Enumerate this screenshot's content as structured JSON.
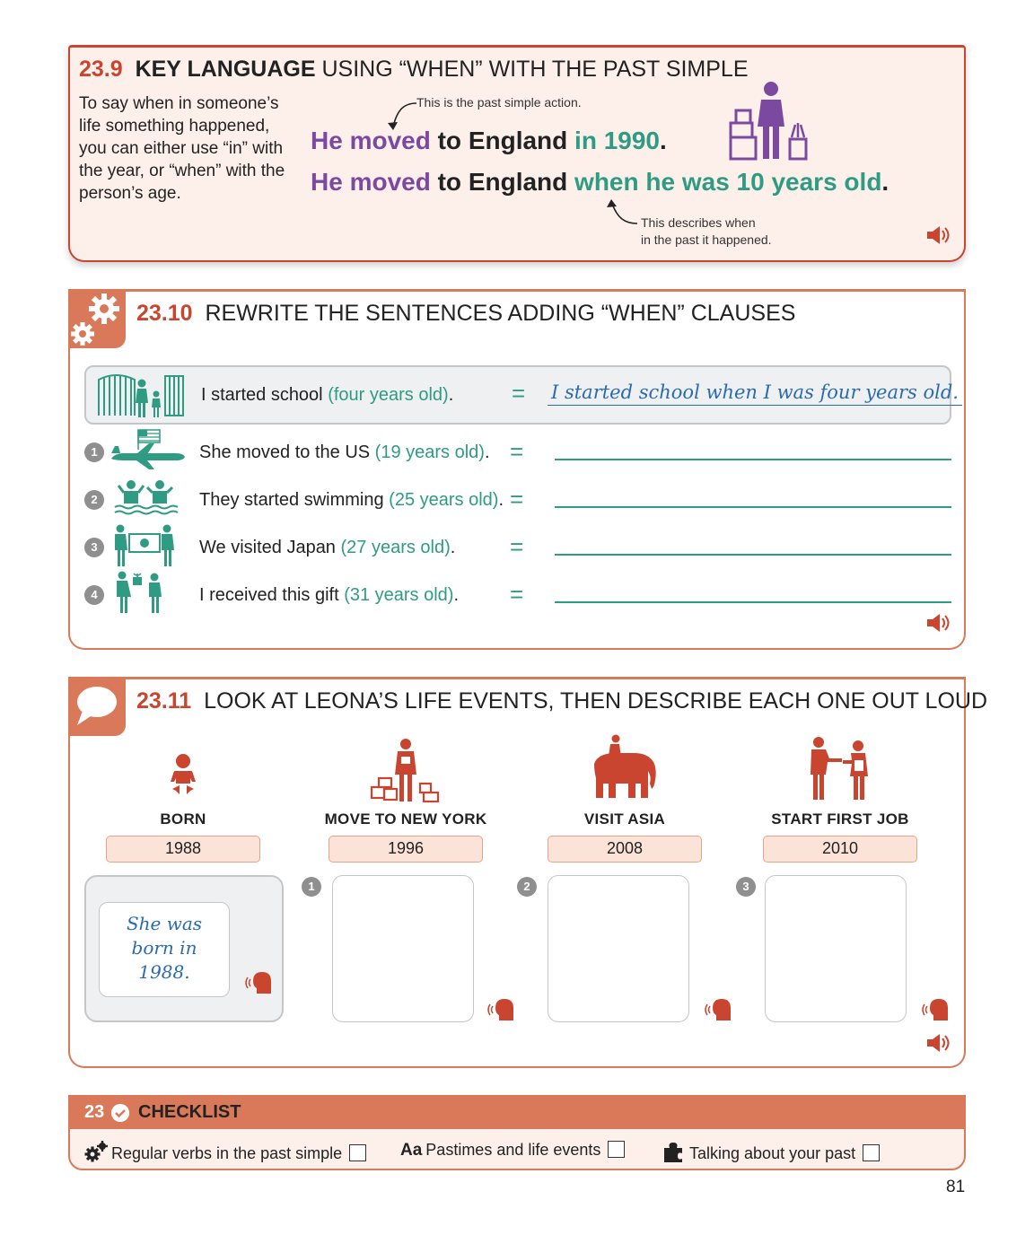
{
  "key_language": {
    "number": "23.9",
    "title_bold": "KEY LANGUAGE",
    "title_rest": " USING “WHEN” WITH THE PAST SIMPLE",
    "intro": "To say when in someone’s life something happened, you can either use “in” with the year, or “when” with the person’s age.",
    "note_top": "This is the past simple action.",
    "note_bottom_1": "This describes when",
    "note_bottom_2": "in the past it happened.",
    "line1": {
      "a": "He moved",
      "b": " to England ",
      "c": "in 1990",
      "d": "."
    },
    "line2": {
      "a": "He moved",
      "b": " to England ",
      "c": "when he was 10 years old",
      "d": "."
    }
  },
  "rewrite": {
    "number": "23.10",
    "title": "REWRITE THE SENTENCES ADDING “WHEN” CLAUSES",
    "equals": "=",
    "example": {
      "text": "I started school ",
      "hint": "(four years old)",
      "end": ".",
      "answer": "I started school when I was four years old."
    },
    "items": [
      {
        "num": "1",
        "text": "She moved to the US ",
        "hint": "(19 years old)",
        "end": "."
      },
      {
        "num": "2",
        "text": "They started swimming ",
        "hint": "(25 years old)",
        "end": "."
      },
      {
        "num": "3",
        "text": "We visited Japan ",
        "hint": "(27 years old)",
        "end": "."
      },
      {
        "num": "4",
        "text": "I received this gift ",
        "hint": "(31 years old)",
        "end": "."
      }
    ]
  },
  "life_events": {
    "number": "23.11",
    "title": "LOOK AT LEONA’S LIFE EVENTS, THEN DESCRIBE EACH ONE OUT LOUD",
    "events": [
      {
        "label": "BORN",
        "year": "1988"
      },
      {
        "label": "MOVE TO NEW YORK",
        "year": "1996"
      },
      {
        "label": "VISIT ASIA",
        "year": "2008"
      },
      {
        "label": "START FIRST JOB",
        "year": "2010"
      }
    ],
    "example_line1": "She was",
    "example_line2": "born in",
    "example_line3": "1988.",
    "bubble_nums": [
      "1",
      "2",
      "3"
    ]
  },
  "checklist": {
    "number": "23",
    "title": "CHECKLIST",
    "items": [
      {
        "label": "Regular verbs in the past simple",
        "icon": "gear-icon"
      },
      {
        "label": "Pastimes and life events",
        "icon": "vocab-icon",
        "prefix": "Aa"
      },
      {
        "label": "Talking about your past",
        "icon": "puzzle-icon"
      }
    ]
  },
  "colors": {
    "red": "#c9452f",
    "orange": "#d9795a",
    "teal": "#2e9b82",
    "purple": "#7b4aa0",
    "handwriting": "#2a6bb0"
  },
  "page_number": "81"
}
